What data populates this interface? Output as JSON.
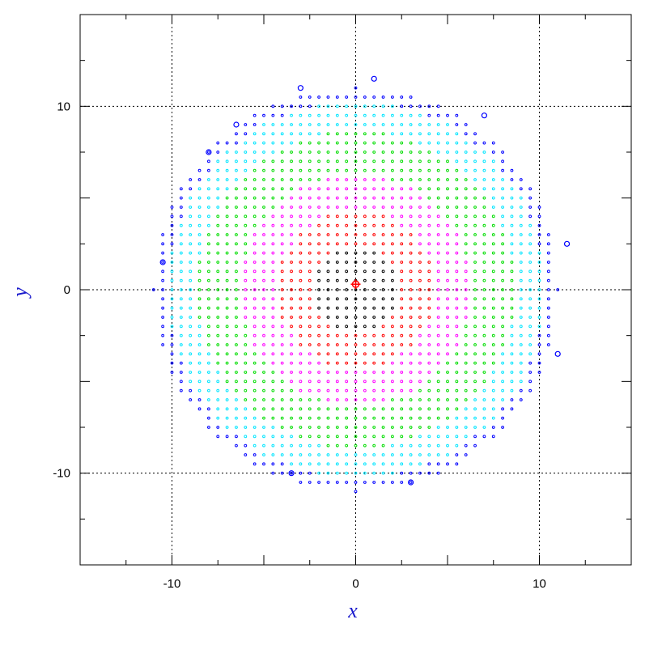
{
  "chart_data": {
    "type": "scatter",
    "xlabel": "x",
    "ylabel": "y",
    "xlim": [
      -15,
      15
    ],
    "ylim": [
      -15,
      15
    ],
    "x_ticks": [
      -10,
      0,
      10
    ],
    "y_ticks": [
      -10,
      0,
      10
    ],
    "x_tick_labels": [
      "-10",
      "0",
      "10"
    ],
    "y_tick_labels": [
      "-10",
      "0",
      "10"
    ],
    "minor_tick_step": 2.5,
    "grid": "dotted at major ticks",
    "axis_label_color": "#1a1acc",
    "grid_spacing": 0.5,
    "disk_radius": 11.0,
    "center_marker": {
      "x": 0,
      "y": 0.3,
      "glyph": "+",
      "color": "#ff0000"
    },
    "series_colors": {
      "core": "#000000",
      "inner": "#ff0000",
      "middle": "#ff00ff",
      "outer_mid": "#00dd00",
      "outer": "#00e5ff",
      "edge": "#0000ff"
    },
    "series": [
      {
        "key": "core",
        "color": "#000000",
        "r_min": 0,
        "r_max": 2.3
      },
      {
        "key": "inner",
        "color": "#ff0000",
        "r_min": 2.3,
        "r_max": 4.3
      },
      {
        "key": "middle",
        "color": "#ff00ff",
        "r_min": 4.3,
        "r_max": 6.3
      },
      {
        "key": "outer_mid",
        "color": "#00dd00",
        "r_min": 6.3,
        "r_max": 8.7
      },
      {
        "key": "outer",
        "color": "#00e5ff",
        "r_min": 8.7,
        "r_max": 10.3
      },
      {
        "key": "edge",
        "color": "#0000ff",
        "r_min": 10.3,
        "r_max": 11.0
      }
    ],
    "large_edge_points": [
      {
        "x": -3.0,
        "y": 11.0
      },
      {
        "x": 1.0,
        "y": 11.5
      },
      {
        "x": 7.0,
        "y": 9.5
      },
      {
        "x": -8.0,
        "y": 7.5
      },
      {
        "x": -6.5,
        "y": 9.0
      },
      {
        "x": 11.5,
        "y": 2.5
      },
      {
        "x": -10.5,
        "y": 1.5
      },
      {
        "x": 11.0,
        "y": -3.5
      },
      {
        "x": -3.5,
        "y": -10.0
      },
      {
        "x": 3.0,
        "y": -10.5
      }
    ]
  }
}
